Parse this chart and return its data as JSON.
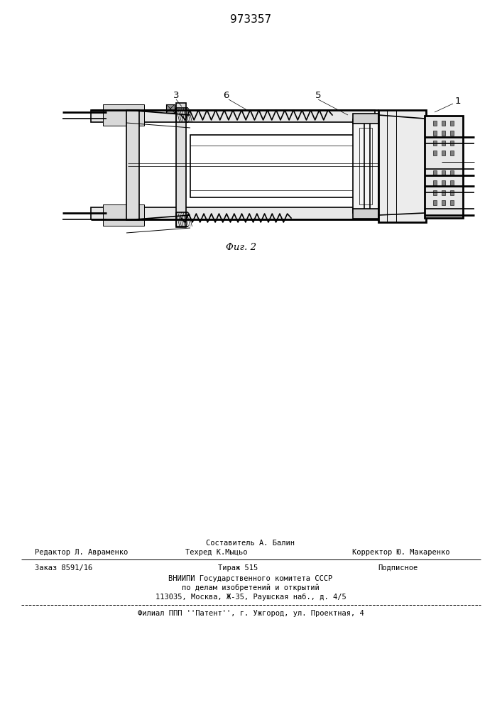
{
  "patent_number": "973357",
  "fig_label": "Φиг. 2",
  "bg_color": "#ffffff",
  "lc": "#000000",
  "footer": {
    "editor": "Редактор Л. Авраменко",
    "composer": "Составитель А. Балин",
    "corrector": "Корректор Ю. Макаренко",
    "techred": "Техред К.Мыцьо",
    "order": "Заказ 8591/16",
    "tirazh": "Тираж 515",
    "podpisnoe": "Подписное",
    "org1": "ВНИИПИ Государственного комитета СССР",
    "org2": "по делам изобретений и открытий",
    "org3": "113035, Москва, Ж-35, Раушская наб., д. 4/5",
    "filial": "Филиал ППП ''Патент'', г. Ужгород, ул. Проектная, 4"
  }
}
